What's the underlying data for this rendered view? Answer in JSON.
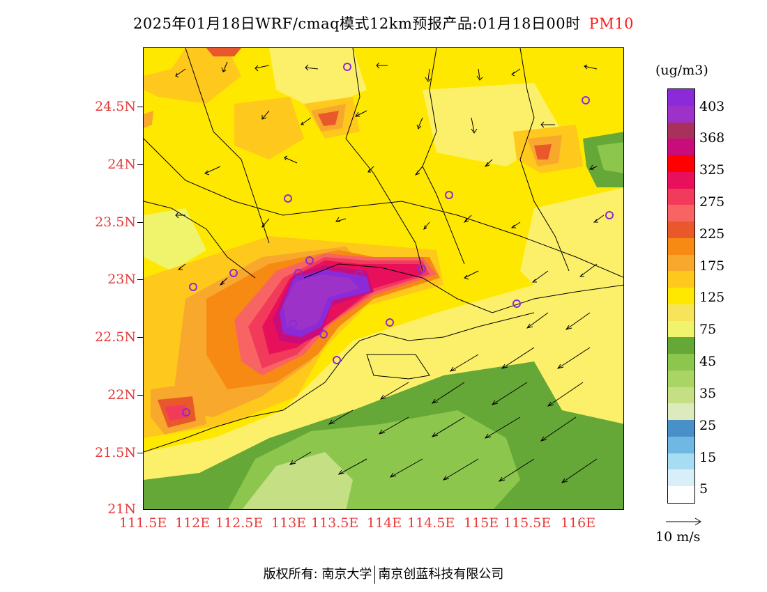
{
  "title": {
    "text": "2025年01月18日WRF/cmaq模式12km预报产品:01月18日00时",
    "variable": "PM10"
  },
  "colorbar": {
    "unit": "(ug/m3)",
    "labels": [
      "403",
      "368",
      "325",
      "275",
      "225",
      "175",
      "125",
      "75",
      "45",
      "35",
      "25",
      "15",
      "5"
    ],
    "colors": [
      "#ffffff",
      "#d8eef8",
      "#a8dcf2",
      "#6fb8e4",
      "#4a90c8",
      "#dceabc",
      "#c4df84",
      "#a9d564",
      "#8cc64c",
      "#66a838",
      "#f0f46c",
      "#f8e45a",
      "#ffe800",
      "#ffc81c",
      "#f8a82c",
      "#f68a12",
      "#e8582a",
      "#f86464",
      "#f23a5a",
      "#e8105a",
      "#ff0000",
      "#c80d7a",
      "#a8305c",
      "#9c32c8",
      "#8a2ad8"
    ]
  },
  "axes": {
    "y_ticks": [
      "24.5N",
      "24N",
      "23.5N",
      "23N",
      "22.5N",
      "22N",
      "21.5N",
      "21N"
    ],
    "x_ticks": [
      "111.5E",
      "112E",
      "112.5E",
      "113E",
      "113.5E",
      "114E",
      "114.5E",
      "115E",
      "115.5E",
      "116E"
    ]
  },
  "vector_legend": {
    "label": "10 m/s"
  },
  "copyright": {
    "left": "版权所有: 南京大学",
    "right": "南京创蓝科技有限公司"
  },
  "colors": {
    "axis_label": "#e83838",
    "variable": "#ff1a1a"
  }
}
